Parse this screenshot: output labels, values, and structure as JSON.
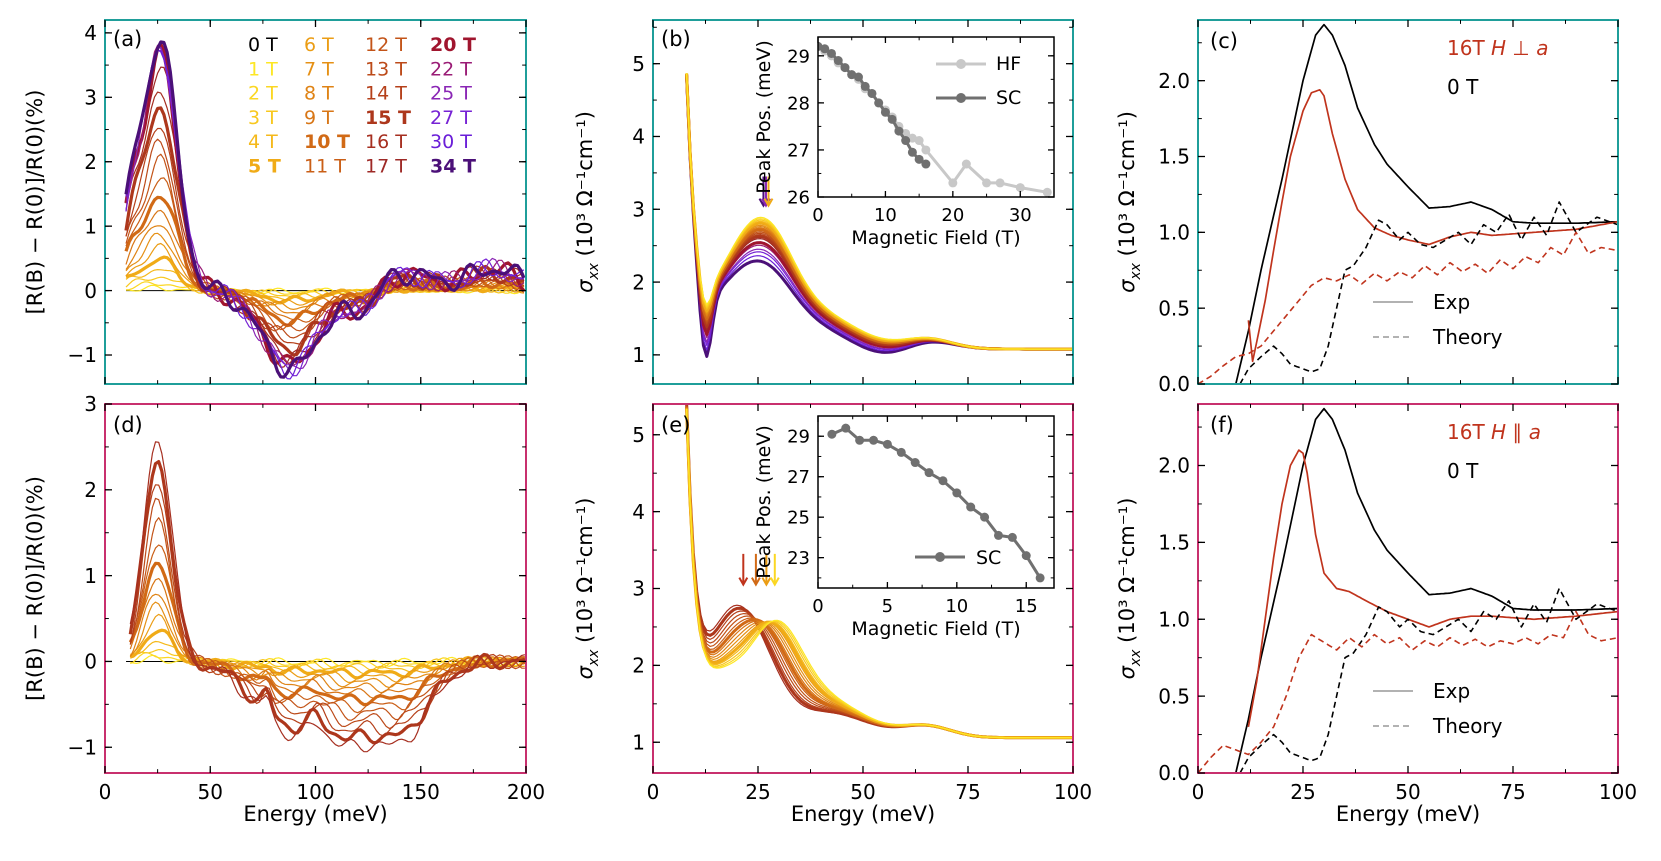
{
  "figure": {
    "energy_label": "Energy (meV)",
    "refl_ylabel": "[R(B) − R(0)]/R(0)(%)",
    "sigma_ylabel": "σ",
    "sigma_sub": "xx",
    "sigma_units": "(10³ Ω⁻¹cm⁻¹)",
    "inset_xlabel": "Magnetic Field (T)",
    "inset_ylabel": "Peak Pos. (meV)"
  },
  "colors": {
    "spine_top": "#1f9e9a",
    "spine_bottom": "#c8306e",
    "exp_16T": "#c0341d",
    "exp_0T": "#000000",
    "inset_HF": "#c8c8c8",
    "inset_SC": "#707070"
  },
  "field_legend": [
    {
      "label": "0 T",
      "color": "#000000",
      "bold": false
    },
    {
      "label": "1 T",
      "color": "#fde725",
      "bold": false
    },
    {
      "label": "2 T",
      "color": "#fbd723",
      "bold": false
    },
    {
      "label": "3 T",
      "color": "#f8c81f",
      "bold": false
    },
    {
      "label": "4 T",
      "color": "#f5b91b",
      "bold": false
    },
    {
      "label": "5 T",
      "color": "#f0ab17",
      "bold": true
    },
    {
      "label": "6 T",
      "color": "#eb9d15",
      "bold": false
    },
    {
      "label": "7 T",
      "color": "#e59015",
      "bold": false
    },
    {
      "label": "8 T",
      "color": "#df8315",
      "bold": false
    },
    {
      "label": "9 T",
      "color": "#d87616",
      "bold": false
    },
    {
      "label": "10 T",
      "color": "#d16a16",
      "bold": true
    },
    {
      "label": "11 T",
      "color": "#ca5f17",
      "bold": false
    },
    {
      "label": "12 T",
      "color": "#c35418",
      "bold": false
    },
    {
      "label": "13 T",
      "color": "#bc4a19",
      "bold": false
    },
    {
      "label": "14 T",
      "color": "#b5401a",
      "bold": false
    },
    {
      "label": "15 T",
      "color": "#ad371c",
      "bold": true
    },
    {
      "label": "16 T",
      "color": "#a62f20",
      "bold": false
    },
    {
      "label": "17 T",
      "color": "#9e2926",
      "bold": false
    },
    {
      "label": "20 T",
      "color": "#a0152e",
      "bold": true
    },
    {
      "label": "22 T",
      "color": "#9a1c76",
      "bold": false
    },
    {
      "label": "25 T",
      "color": "#8a26b5",
      "bold": false
    },
    {
      "label": "27 T",
      "color": "#7622d4",
      "bold": false
    },
    {
      "label": "30 T",
      "color": "#6a1ed8",
      "bold": false
    },
    {
      "label": "34 T",
      "color": "#4b1078",
      "bold": true
    }
  ],
  "chart_data": [
    {
      "panel": "a",
      "type": "line",
      "title": "(a)",
      "xlabel": "",
      "ylabel": "[R(B) − R(0)]/R(0)(%)",
      "xlim": [
        0,
        200
      ],
      "ylim": [
        -1.45,
        4.2
      ],
      "xticks": [
        0,
        50,
        100,
        150,
        200
      ],
      "yticks": [
        -1,
        0,
        1,
        2,
        3,
        4
      ],
      "series_model": "Amplitude-scaled relative reflectance change per field (0–34 T); peaks near 25 meV, dip near 90 meV",
      "peak_amplitude_by_field": {
        "1 T": 0.05,
        "5 T": 0.3,
        "10 T": 1.2,
        "15 T": 2.7,
        "16 T": 3.1,
        "20 T": 3.6,
        "34 T": 3.7
      },
      "dip_amplitude_by_field": {
        "5 T": -0.1,
        "10 T": -0.35,
        "15 T": -0.9,
        "20 T": -1.1,
        "34 T": -1.2
      }
    },
    {
      "panel": "b",
      "type": "line",
      "title": "(b)",
      "xlabel": "",
      "ylabel": "σxx (10³ Ω⁻¹cm⁻¹)",
      "xlim": [
        0,
        100
      ],
      "ylim": [
        0.6,
        5.6
      ],
      "xticks": [
        0,
        25,
        50,
        75,
        100
      ],
      "yticks": [
        1,
        2,
        3,
        4,
        5
      ],
      "series_model": "Optical conductivity per field; peak near 27 meV drops from 2.7 (1 T) to 2.2 (34 T)",
      "peak_value_by_field": {
        "1 T": 2.72,
        "10 T": 2.55,
        "20 T": 2.35,
        "34 T": 2.2
      },
      "arrows_at_meV": [
        26.3,
        26.9,
        27.5
      ],
      "inset": {
        "xlabel": "Magnetic Field (T)",
        "ylabel": "Peak Pos. (meV)",
        "xlim": [
          0,
          35
        ],
        "ylim": [
          26,
          29.4
        ],
        "xticks": [
          0,
          10,
          20,
          30
        ],
        "yticks": [
          26,
          27,
          28,
          29
        ],
        "series": [
          {
            "name": "HF",
            "x": [
              0,
              1,
              2,
              3,
              4,
              5,
              6,
              7,
              8,
              9,
              10,
              11,
              12,
              13,
              14,
              15,
              16,
              20,
              22,
              25,
              27,
              30,
              34
            ],
            "y": [
              29.2,
              29.1,
              29.0,
              28.85,
              28.75,
              28.6,
              28.5,
              28.3,
              28.2,
              28.0,
              27.85,
              27.7,
              27.5,
              27.35,
              27.25,
              27.2,
              27.0,
              26.3,
              26.7,
              26.3,
              26.3,
              26.2,
              26.1
            ]
          },
          {
            "name": "SC",
            "x": [
              0,
              1,
              2,
              3,
              4,
              5,
              6,
              7,
              8,
              9,
              10,
              11,
              12,
              13,
              14,
              15,
              16
            ],
            "y": [
              29.2,
              29.15,
              29.05,
              28.9,
              28.75,
              28.6,
              28.55,
              28.35,
              28.2,
              28.0,
              27.8,
              27.65,
              27.4,
              27.2,
              26.95,
              26.8,
              26.7
            ]
          }
        ]
      }
    },
    {
      "panel": "c",
      "type": "line",
      "title": "(c)",
      "xlabel": "",
      "ylabel": "σxx (10³ Ω⁻¹cm⁻¹)",
      "xlim": [
        0,
        100
      ],
      "ylim": [
        0,
        2.4
      ],
      "xticks": [
        0,
        25,
        50,
        75,
        100
      ],
      "yticks": [
        0.0,
        0.5,
        1.0,
        1.5,
        2.0
      ],
      "legend": [
        "16T H ⊥ a",
        "0 T",
        "Exp",
        "Theory"
      ],
      "series": [
        {
          "name": "0 T Exp",
          "style": "solid",
          "color": "#000000",
          "x": [
            9,
            12,
            15,
            20,
            25,
            28,
            30,
            32,
            35,
            38,
            42,
            45,
            50,
            55,
            60,
            65,
            70,
            75,
            80,
            90,
            100
          ],
          "y": [
            0.0,
            0.35,
            0.75,
            1.35,
            2.0,
            2.3,
            2.37,
            2.3,
            2.1,
            1.82,
            1.58,
            1.45,
            1.3,
            1.16,
            1.17,
            1.2,
            1.15,
            1.07,
            1.06,
            1.06,
            1.07
          ]
        },
        {
          "name": "16T Exp",
          "style": "solid",
          "color": "#c0341d",
          "x": [
            12,
            13,
            14,
            16,
            18,
            20,
            22,
            25,
            27,
            29,
            30,
            32,
            35,
            38,
            42,
            46,
            50,
            55,
            60,
            65,
            70,
            80,
            90,
            100
          ],
          "y": [
            0.42,
            0.15,
            0.28,
            0.55,
            0.88,
            1.2,
            1.5,
            1.8,
            1.92,
            1.94,
            1.9,
            1.65,
            1.35,
            1.15,
            1.03,
            0.98,
            0.95,
            0.92,
            0.97,
            1.0,
            0.98,
            1.0,
            1.02,
            1.07
          ]
        },
        {
          "name": "0 T Theory",
          "style": "dashed",
          "color": "#000000",
          "x": [
            10,
            12,
            15,
            18,
            20,
            22,
            25,
            27,
            29,
            31,
            33,
            35,
            37,
            40,
            43,
            45,
            48,
            50,
            53,
            56,
            59,
            62,
            65,
            68,
            71,
            74,
            77,
            80,
            83,
            86,
            90,
            95,
            100
          ],
          "y": [
            0.0,
            0.1,
            0.18,
            0.25,
            0.2,
            0.13,
            0.1,
            0.08,
            0.1,
            0.25,
            0.5,
            0.75,
            0.78,
            0.9,
            1.08,
            1.05,
            0.95,
            1.0,
            0.92,
            0.9,
            0.95,
            1.0,
            0.92,
            1.05,
            1.0,
            1.12,
            0.95,
            1.1,
            0.98,
            1.2,
            1.0,
            1.1,
            1.05
          ]
        },
        {
          "name": "16T Theory",
          "style": "dashed",
          "color": "#c0341d",
          "x": [
            0,
            3,
            6,
            9,
            12,
            15,
            18,
            21,
            24,
            27,
            30,
            33,
            36,
            39,
            42,
            45,
            48,
            51,
            54,
            57,
            60,
            63,
            66,
            69,
            72,
            75,
            78,
            81,
            84,
            87,
            90,
            93,
            96,
            100
          ],
          "y": [
            0.0,
            0.05,
            0.12,
            0.18,
            0.2,
            0.25,
            0.35,
            0.45,
            0.55,
            0.65,
            0.7,
            0.68,
            0.72,
            0.66,
            0.73,
            0.68,
            0.74,
            0.7,
            0.78,
            0.72,
            0.8,
            0.74,
            0.79,
            0.73,
            0.82,
            0.76,
            0.84,
            0.8,
            0.9,
            0.85,
            1.0,
            0.86,
            0.9,
            0.88
          ]
        }
      ]
    },
    {
      "panel": "d",
      "type": "line",
      "title": "(d)",
      "xlabel": "Energy (meV)",
      "ylabel": "[R(B) − R(0)]/R(0)(%)",
      "xlim": [
        0,
        200
      ],
      "ylim": [
        -1.3,
        3.0
      ],
      "xticks": [
        0,
        50,
        100,
        150,
        200
      ],
      "yticks": [
        -1,
        0,
        1,
        2,
        3
      ],
      "series_model": "Relative reflectance change, H ∥ a, 1–16 T; peak near 25 meV grows to 2.6 at 16 T",
      "peak_amplitude_by_field": {
        "1 T": 0.02,
        "5 T": 0.25,
        "10 T": 1.15,
        "15 T": 2.3,
        "16 T": 2.6
      }
    },
    {
      "panel": "e",
      "type": "line",
      "title": "(e)",
      "xlabel": "Energy (meV)",
      "ylabel": "σxx (10³ Ω⁻¹cm⁻¹)",
      "xlim": [
        0,
        100
      ],
      "ylim": [
        0.6,
        5.4
      ],
      "xticks": [
        0,
        25,
        50,
        75,
        100
      ],
      "yticks": [
        1,
        2,
        3,
        4,
        5
      ],
      "series_model": "Optical conductivity H ∥ a, 1–16 T; peak shifts from 29 meV to 22 meV",
      "arrows_at_meV": [
        21.5,
        24.5,
        27,
        29
      ],
      "inset": {
        "xlabel": "Magnetic Field (T)",
        "ylabel": "Peak Pos. (meV)",
        "xlim": [
          0,
          17
        ],
        "ylim": [
          21.5,
          30
        ],
        "xticks": [
          0,
          5,
          10,
          15
        ],
        "yticks": [
          23,
          25,
          27,
          29
        ],
        "series": [
          {
            "name": "SC",
            "x": [
              1,
              2,
              3,
              4,
              5,
              6,
              7,
              8,
              9,
              10,
              11,
              12,
              13,
              14,
              15,
              16
            ],
            "y": [
              29.1,
              29.4,
              28.8,
              28.8,
              28.6,
              28.2,
              27.7,
              27.2,
              26.8,
              26.2,
              25.5,
              25.0,
              24.1,
              24.0,
              23.1,
              22.0
            ]
          }
        ]
      }
    },
    {
      "panel": "f",
      "type": "line",
      "title": "(f)",
      "xlabel": "Energy (meV)",
      "ylabel": "σxx (10³ Ω⁻¹cm⁻¹)",
      "xlim": [
        0,
        100
      ],
      "ylim": [
        0,
        2.4
      ],
      "xticks": [
        0,
        25,
        50,
        75,
        100
      ],
      "yticks": [
        0.0,
        0.5,
        1.0,
        1.5,
        2.0
      ],
      "legend": [
        "16T H ∥ a",
        "0 T",
        "Exp",
        "Theory"
      ],
      "series": [
        {
          "name": "0 T Exp",
          "style": "solid",
          "color": "#000000",
          "x": [
            9,
            12,
            15,
            20,
            25,
            28,
            30,
            32,
            35,
            38,
            42,
            45,
            50,
            55,
            60,
            65,
            70,
            75,
            80,
            90,
            100
          ],
          "y": [
            0.0,
            0.35,
            0.75,
            1.35,
            2.0,
            2.3,
            2.37,
            2.3,
            2.1,
            1.82,
            1.58,
            1.45,
            1.3,
            1.16,
            1.17,
            1.2,
            1.15,
            1.07,
            1.06,
            1.06,
            1.07
          ]
        },
        {
          "name": "16T Exp",
          "style": "solid",
          "color": "#c0341d",
          "x": [
            12,
            14,
            16,
            18,
            20,
            22,
            24,
            25,
            26,
            28,
            30,
            33,
            36,
            40,
            45,
            50,
            55,
            60,
            65,
            70,
            80,
            90,
            100
          ],
          "y": [
            0.3,
            0.6,
            1.0,
            1.4,
            1.75,
            2.0,
            2.1,
            2.08,
            1.95,
            1.55,
            1.3,
            1.2,
            1.18,
            1.12,
            1.05,
            1.0,
            0.95,
            1.0,
            1.02,
            1.02,
            1.0,
            1.02,
            1.05
          ]
        },
        {
          "name": "0 T Theory",
          "style": "dashed",
          "color": "#000000",
          "x": [
            10,
            12,
            15,
            18,
            20,
            22,
            25,
            27,
            29,
            31,
            33,
            35,
            37,
            40,
            43,
            45,
            48,
            50,
            53,
            56,
            59,
            62,
            65,
            68,
            71,
            74,
            77,
            80,
            83,
            86,
            90,
            95,
            100
          ],
          "y": [
            0.0,
            0.1,
            0.18,
            0.25,
            0.2,
            0.13,
            0.1,
            0.08,
            0.1,
            0.25,
            0.5,
            0.75,
            0.78,
            0.9,
            1.08,
            1.05,
            0.95,
            1.0,
            0.92,
            0.9,
            0.95,
            1.0,
            0.92,
            1.05,
            1.0,
            1.12,
            0.95,
            1.1,
            0.98,
            1.2,
            1.0,
            1.1,
            1.05
          ]
        },
        {
          "name": "16T Theory",
          "style": "dashed",
          "color": "#c0341d",
          "x": [
            0,
            3,
            6,
            9,
            12,
            15,
            18,
            21,
            24,
            27,
            30,
            33,
            36,
            39,
            42,
            45,
            48,
            51,
            54,
            57,
            60,
            63,
            66,
            69,
            72,
            75,
            78,
            81,
            84,
            87,
            90,
            93,
            96,
            100
          ],
          "y": [
            0.0,
            0.1,
            0.18,
            0.15,
            0.12,
            0.2,
            0.3,
            0.5,
            0.75,
            0.9,
            0.85,
            0.8,
            0.88,
            0.82,
            0.9,
            0.84,
            0.88,
            0.8,
            0.86,
            0.82,
            0.88,
            0.83,
            0.87,
            0.82,
            0.86,
            0.84,
            0.88,
            0.84,
            0.9,
            0.88,
            1.05,
            0.9,
            0.86,
            0.88
          ]
        }
      ]
    }
  ]
}
